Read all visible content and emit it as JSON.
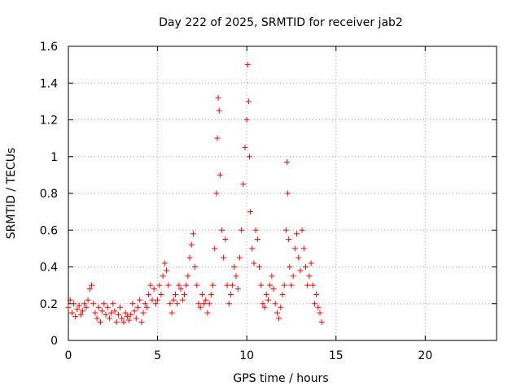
{
  "chart_data": {
    "type": "scatter",
    "title": "Day 222 of 2025, SRMTID for receiver jab2",
    "xlabel": "GPS time / hours",
    "ylabel": "SRMTID / TECUs",
    "xlim": [
      0,
      24
    ],
    "ylim": [
      0,
      1.6
    ],
    "xticks": [
      0,
      5,
      10,
      15,
      20
    ],
    "yticks": [
      0,
      0.2,
      0.4,
      0.6,
      0.8,
      1,
      1.2,
      1.4,
      1.6
    ],
    "xtick_labels": [
      "0",
      "5",
      "10",
      "15",
      "20"
    ],
    "ytick_labels": [
      "0",
      "0.2",
      "0.4",
      "0.6",
      "0.8",
      "1",
      "1.2",
      "1.4",
      "1.6"
    ],
    "grid": true,
    "marker": "+",
    "color": "#ff0000",
    "series": [
      {
        "name": "jab2",
        "x": [
          0.0,
          0.1,
          0.2,
          0.3,
          0.4,
          0.5,
          0.6,
          0.7,
          0.8,
          0.9,
          1.0,
          1.1,
          1.2,
          1.3,
          1.4,
          1.5,
          1.6,
          1.7,
          1.8,
          1.9,
          2.0,
          2.1,
          2.2,
          2.3,
          2.4,
          2.5,
          2.6,
          2.7,
          2.8,
          2.9,
          3.0,
          3.1,
          3.2,
          3.3,
          3.4,
          3.5,
          3.6,
          3.7,
          3.8,
          3.9,
          4.0,
          4.1,
          4.2,
          4.3,
          4.4,
          4.5,
          4.6,
          4.7,
          4.8,
          4.9,
          5.0,
          5.1,
          5.2,
          5.3,
          5.4,
          5.5,
          5.6,
          5.7,
          5.8,
          5.9,
          6.0,
          6.1,
          6.2,
          6.3,
          6.4,
          6.5,
          6.6,
          6.7,
          6.8,
          6.9,
          7.0,
          7.1,
          7.2,
          7.3,
          7.4,
          7.5,
          7.6,
          7.7,
          7.8,
          7.9,
          8.0,
          8.1,
          8.2,
          8.3,
          8.35,
          8.4,
          8.45,
          8.5,
          8.6,
          8.7,
          8.8,
          8.9,
          9.0,
          9.1,
          9.2,
          9.3,
          9.4,
          9.5,
          9.6,
          9.7,
          9.8,
          9.9,
          10.0,
          10.05,
          10.1,
          10.15,
          10.2,
          10.3,
          10.4,
          10.5,
          10.6,
          10.7,
          10.8,
          10.9,
          11.0,
          11.1,
          11.2,
          11.3,
          11.4,
          11.5,
          11.6,
          11.7,
          11.8,
          11.9,
          12.0,
          12.1,
          12.2,
          12.25,
          12.3,
          12.35,
          12.4,
          12.5,
          12.6,
          12.7,
          12.8,
          12.9,
          13.0,
          13.1,
          13.2,
          13.3,
          13.4,
          13.5,
          13.6,
          13.7,
          13.8,
          13.9,
          14.0,
          14.1,
          14.2
        ],
        "y": [
          0.18,
          0.22,
          0.15,
          0.2,
          0.13,
          0.17,
          0.19,
          0.14,
          0.16,
          0.2,
          0.18,
          0.22,
          0.28,
          0.3,
          0.2,
          0.15,
          0.12,
          0.18,
          0.1,
          0.16,
          0.2,
          0.14,
          0.18,
          0.12,
          0.15,
          0.2,
          0.16,
          0.1,
          0.14,
          0.18,
          0.12,
          0.1,
          0.15,
          0.13,
          0.11,
          0.14,
          0.2,
          0.16,
          0.12,
          0.18,
          0.22,
          0.1,
          0.15,
          0.2,
          0.18,
          0.25,
          0.3,
          0.22,
          0.28,
          0.2,
          0.22,
          0.3,
          0.25,
          0.35,
          0.42,
          0.38,
          0.3,
          0.2,
          0.15,
          0.22,
          0.25,
          0.2,
          0.3,
          0.28,
          0.22,
          0.25,
          0.3,
          0.35,
          0.45,
          0.52,
          0.58,
          0.4,
          0.3,
          0.2,
          0.18,
          0.25,
          0.2,
          0.22,
          0.15,
          0.2,
          0.25,
          0.3,
          0.5,
          0.8,
          1.1,
          1.32,
          1.25,
          0.9,
          0.6,
          0.45,
          0.55,
          0.3,
          0.2,
          0.25,
          0.3,
          0.4,
          0.35,
          0.28,
          0.45,
          0.6,
          0.85,
          1.05,
          1.2,
          1.5,
          1.3,
          1.0,
          0.7,
          0.5,
          0.42,
          0.6,
          0.55,
          0.4,
          0.3,
          0.2,
          0.18,
          0.25,
          0.22,
          0.3,
          0.35,
          0.28,
          0.2,
          0.15,
          0.12,
          0.18,
          0.25,
          0.3,
          0.6,
          0.97,
          0.8,
          0.55,
          0.4,
          0.3,
          0.35,
          0.5,
          0.58,
          0.45,
          0.38,
          0.6,
          0.5,
          0.4,
          0.3,
          0.35,
          0.42,
          0.3,
          0.2,
          0.25,
          0.18,
          0.15,
          0.1
        ]
      }
    ]
  }
}
